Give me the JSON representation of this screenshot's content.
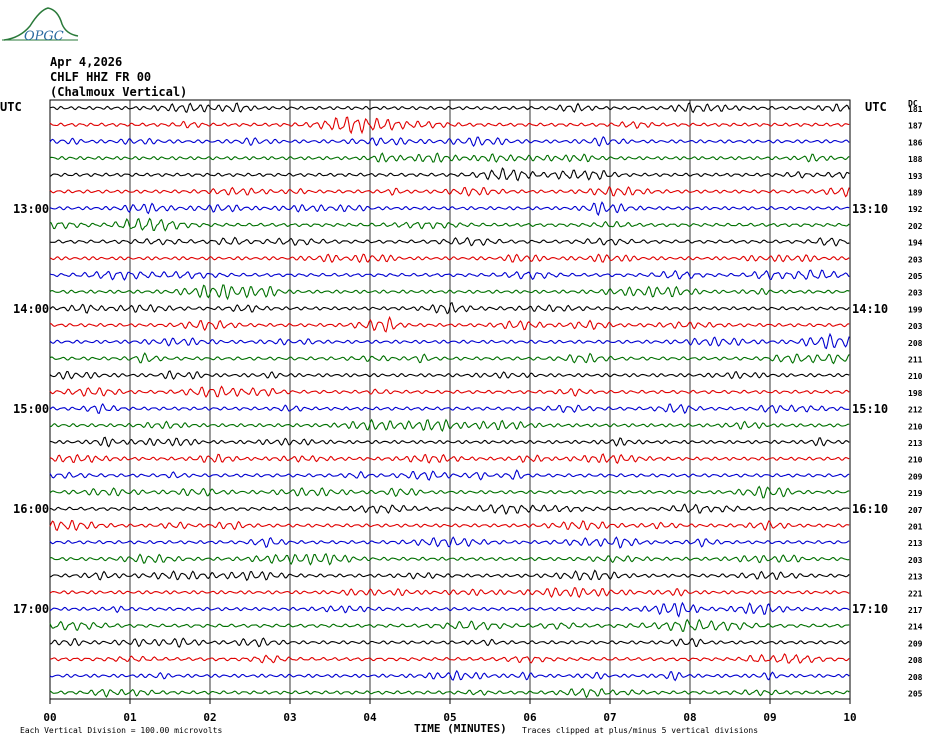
{
  "logo": {
    "text": "OPGC"
  },
  "header": {
    "date": "Apr 4,2026",
    "station": "CHLF HHZ FR 00",
    "location": "(Chalmoux Vertical)"
  },
  "left_axis_label": "UTC",
  "right_axis_label": "UTC",
  "dc_label": "DC",
  "left_time_labels": [
    "13:00",
    "14:00",
    "15:00",
    "16:00",
    "17:00"
  ],
  "right_time_labels": [
    "13:10",
    "14:10",
    "15:10",
    "16:10",
    "17:10"
  ],
  "footer": {
    "left_note": "Each Vertical Division =  100.00 microvolts",
    "xlabel": "TIME (MINUTES)",
    "right_note": "Traces clipped at plus/minus 5 vertical divisions"
  },
  "colors": {
    "trace_cycle": [
      "#000000",
      "#e00000",
      "#0000d0",
      "#007000"
    ],
    "logo": "#2a7a3a"
  },
  "chart_data": {
    "type": "line",
    "title": "CHLF HHZ FR 00",
    "xlabel": "TIME (MINUTES)",
    "xlim": [
      0,
      10
    ],
    "x_ticks": [
      "00",
      "01",
      "02",
      "03",
      "04",
      "05",
      "06",
      "07",
      "08",
      "09",
      "10"
    ],
    "grid": "vertical lines every minute",
    "trace_minutes_per_line": 10,
    "trace_count": 36,
    "dc_offsets": [
      181,
      187,
      186,
      188,
      193,
      189,
      192,
      202,
      194,
      203,
      205,
      203,
      199,
      203,
      208,
      211,
      210,
      198,
      212,
      210,
      213,
      210,
      209,
      219,
      207,
      201,
      213,
      203,
      213,
      221,
      217,
      214,
      209,
      208,
      208,
      205
    ]
  }
}
